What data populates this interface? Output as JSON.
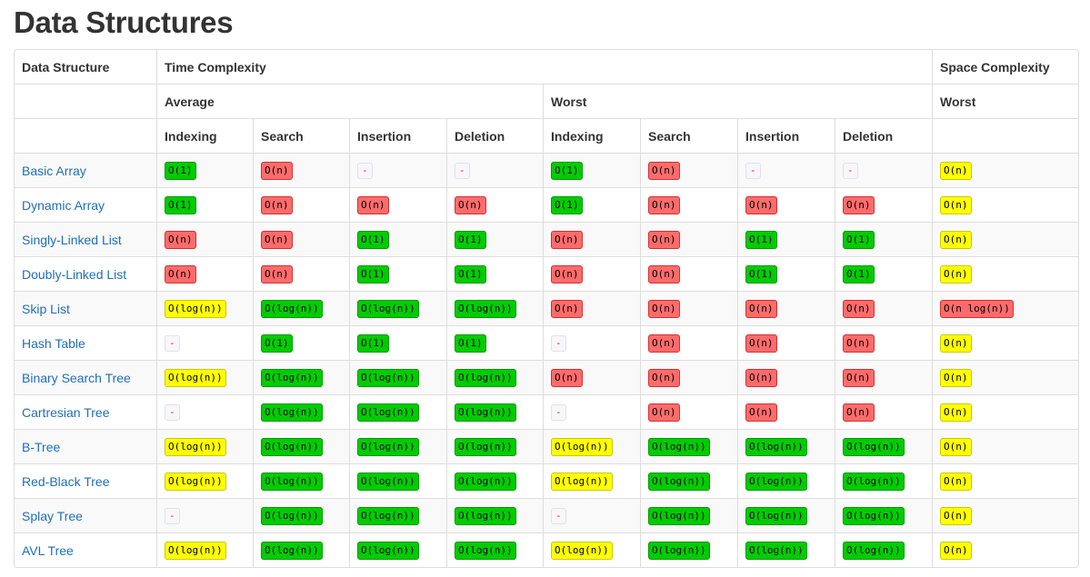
{
  "page": {
    "title": "Data Structures"
  },
  "headers": {
    "data_structure": "Data Structure",
    "time_complexity": "Time Complexity",
    "space_complexity": "Space Complexity",
    "average": "Average",
    "worst": "Worst",
    "space_worst": "Worst",
    "ops": [
      "Indexing",
      "Search",
      "Insertion",
      "Deletion"
    ]
  },
  "colors": {
    "green": "#00cc00",
    "red": "#ff6b6b",
    "yellow": "#ffff00",
    "gray": "#f7f7f9",
    "link": "#1f6fb8"
  },
  "rows": [
    {
      "name": "Basic Array",
      "cells": [
        [
          "O(1)",
          "green"
        ],
        [
          "O(n)",
          "red"
        ],
        [
          "-",
          "gray"
        ],
        [
          "-",
          "gray"
        ],
        [
          "O(1)",
          "green"
        ],
        [
          "O(n)",
          "red"
        ],
        [
          "-",
          "gray"
        ],
        [
          "-",
          "gray"
        ],
        [
          "O(n)",
          "yellow"
        ]
      ]
    },
    {
      "name": "Dynamic Array",
      "cells": [
        [
          "O(1)",
          "green"
        ],
        [
          "O(n)",
          "red"
        ],
        [
          "O(n)",
          "red"
        ],
        [
          "O(n)",
          "red"
        ],
        [
          "O(1)",
          "green"
        ],
        [
          "O(n)",
          "red"
        ],
        [
          "O(n)",
          "red"
        ],
        [
          "O(n)",
          "red"
        ],
        [
          "O(n)",
          "yellow"
        ]
      ]
    },
    {
      "name": "Singly-Linked List",
      "cells": [
        [
          "O(n)",
          "red"
        ],
        [
          "O(n)",
          "red"
        ],
        [
          "O(1)",
          "green"
        ],
        [
          "O(1)",
          "green"
        ],
        [
          "O(n)",
          "red"
        ],
        [
          "O(n)",
          "red"
        ],
        [
          "O(1)",
          "green"
        ],
        [
          "O(1)",
          "green"
        ],
        [
          "O(n)",
          "yellow"
        ]
      ]
    },
    {
      "name": "Doubly-Linked List",
      "cells": [
        [
          "O(n)",
          "red"
        ],
        [
          "O(n)",
          "red"
        ],
        [
          "O(1)",
          "green"
        ],
        [
          "O(1)",
          "green"
        ],
        [
          "O(n)",
          "red"
        ],
        [
          "O(n)",
          "red"
        ],
        [
          "O(1)",
          "green"
        ],
        [
          "O(1)",
          "green"
        ],
        [
          "O(n)",
          "yellow"
        ]
      ]
    },
    {
      "name": "Skip List",
      "cells": [
        [
          "O(log(n))",
          "yellow"
        ],
        [
          "O(log(n))",
          "green"
        ],
        [
          "O(log(n))",
          "green"
        ],
        [
          "O(log(n))",
          "green"
        ],
        [
          "O(n)",
          "red"
        ],
        [
          "O(n)",
          "red"
        ],
        [
          "O(n)",
          "red"
        ],
        [
          "O(n)",
          "red"
        ],
        [
          "O(n log(n))",
          "red"
        ]
      ]
    },
    {
      "name": "Hash Table",
      "cells": [
        [
          "-",
          "gray"
        ],
        [
          "O(1)",
          "green"
        ],
        [
          "O(1)",
          "green"
        ],
        [
          "O(1)",
          "green"
        ],
        [
          "-",
          "gray"
        ],
        [
          "O(n)",
          "red"
        ],
        [
          "O(n)",
          "red"
        ],
        [
          "O(n)",
          "red"
        ],
        [
          "O(n)",
          "yellow"
        ]
      ]
    },
    {
      "name": "Binary Search Tree",
      "cells": [
        [
          "O(log(n))",
          "yellow"
        ],
        [
          "O(log(n))",
          "green"
        ],
        [
          "O(log(n))",
          "green"
        ],
        [
          "O(log(n))",
          "green"
        ],
        [
          "O(n)",
          "red"
        ],
        [
          "O(n)",
          "red"
        ],
        [
          "O(n)",
          "red"
        ],
        [
          "O(n)",
          "red"
        ],
        [
          "O(n)",
          "yellow"
        ]
      ]
    },
    {
      "name": "Cartresian Tree",
      "cells": [
        [
          "-",
          "gray"
        ],
        [
          "O(log(n))",
          "green"
        ],
        [
          "O(log(n))",
          "green"
        ],
        [
          "O(log(n))",
          "green"
        ],
        [
          "-",
          "gray"
        ],
        [
          "O(n)",
          "red"
        ],
        [
          "O(n)",
          "red"
        ],
        [
          "O(n)",
          "red"
        ],
        [
          "O(n)",
          "yellow"
        ]
      ]
    },
    {
      "name": "B-Tree",
      "cells": [
        [
          "O(log(n))",
          "yellow"
        ],
        [
          "O(log(n))",
          "green"
        ],
        [
          "O(log(n))",
          "green"
        ],
        [
          "O(log(n))",
          "green"
        ],
        [
          "O(log(n))",
          "yellow"
        ],
        [
          "O(log(n))",
          "green"
        ],
        [
          "O(log(n))",
          "green"
        ],
        [
          "O(log(n))",
          "green"
        ],
        [
          "O(n)",
          "yellow"
        ]
      ]
    },
    {
      "name": "Red-Black Tree",
      "cells": [
        [
          "O(log(n))",
          "yellow"
        ],
        [
          "O(log(n))",
          "green"
        ],
        [
          "O(log(n))",
          "green"
        ],
        [
          "O(log(n))",
          "green"
        ],
        [
          "O(log(n))",
          "yellow"
        ],
        [
          "O(log(n))",
          "green"
        ],
        [
          "O(log(n))",
          "green"
        ],
        [
          "O(log(n))",
          "green"
        ],
        [
          "O(n)",
          "yellow"
        ]
      ]
    },
    {
      "name": "Splay Tree",
      "cells": [
        [
          "-",
          "gray"
        ],
        [
          "O(log(n))",
          "green"
        ],
        [
          "O(log(n))",
          "green"
        ],
        [
          "O(log(n))",
          "green"
        ],
        [
          "-",
          "gray"
        ],
        [
          "O(log(n))",
          "green"
        ],
        [
          "O(log(n))",
          "green"
        ],
        [
          "O(log(n))",
          "green"
        ],
        [
          "O(n)",
          "yellow"
        ]
      ]
    },
    {
      "name": "AVL Tree",
      "cells": [
        [
          "O(log(n))",
          "yellow"
        ],
        [
          "O(log(n))",
          "green"
        ],
        [
          "O(log(n))",
          "green"
        ],
        [
          "O(log(n))",
          "green"
        ],
        [
          "O(log(n))",
          "yellow"
        ],
        [
          "O(log(n))",
          "green"
        ],
        [
          "O(log(n))",
          "green"
        ],
        [
          "O(log(n))",
          "green"
        ],
        [
          "O(n)",
          "yellow"
        ]
      ]
    }
  ]
}
